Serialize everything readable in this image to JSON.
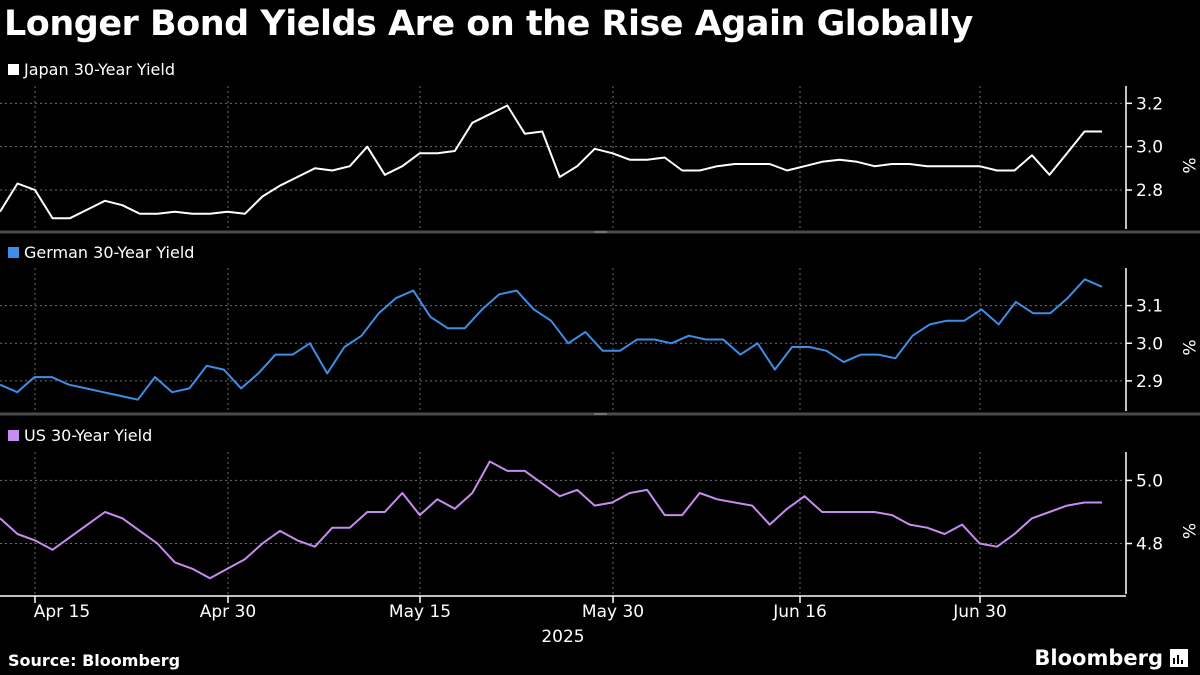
{
  "title": "Longer Bond Yields Are on the Rise Again Globally",
  "source": "Source: Bloomberg",
  "brand": "Bloomberg",
  "brand_icon": "bloomberg-terminal-icon",
  "colors": {
    "japan": "#ffffff",
    "germany": "#3d8ee6",
    "us": "#c68cf0",
    "grid": "#6e6e6e",
    "divider": "#4a4a4a"
  },
  "chart_data": [
    {
      "type": "line",
      "legend": "Japan 30-Year Yield",
      "unit": "%",
      "y_ticks": [
        2.8,
        3.0,
        3.2
      ],
      "ylim": [
        2.62,
        3.28
      ],
      "x_ticks": [
        "Apr 15",
        "Apr 30",
        "May 15",
        "May 30",
        "Jun 16",
        "Jun 30"
      ],
      "x_year": "2025",
      "values": [
        2.7,
        2.83,
        2.8,
        2.67,
        2.67,
        2.71,
        2.75,
        2.73,
        2.69,
        2.69,
        2.7,
        2.69,
        2.69,
        2.7,
        2.69,
        2.77,
        2.82,
        2.86,
        2.9,
        2.89,
        2.91,
        3.0,
        2.87,
        2.91,
        2.97,
        2.97,
        2.98,
        3.11,
        3.15,
        3.19,
        3.06,
        3.07,
        2.86,
        2.91,
        2.99,
        2.97,
        2.94,
        2.94,
        2.95,
        2.89,
        2.89,
        2.91,
        2.92,
        2.92,
        2.92,
        2.89,
        2.91,
        2.93,
        2.94,
        2.93,
        2.91,
        2.92,
        2.92,
        2.91,
        2.91,
        2.91,
        2.91,
        2.89,
        2.89,
        2.96,
        2.87,
        2.97,
        3.07,
        3.07
      ]
    },
    {
      "type": "line",
      "legend": "German 30-Year Yield",
      "unit": "%",
      "y_ticks": [
        2.9,
        3.0,
        3.1
      ],
      "ylim": [
        2.82,
        3.2
      ],
      "values": [
        2.89,
        2.87,
        2.91,
        2.91,
        2.89,
        2.88,
        2.87,
        2.86,
        2.85,
        2.91,
        2.87,
        2.88,
        2.94,
        2.93,
        2.88,
        2.92,
        2.97,
        2.97,
        3.0,
        2.92,
        2.99,
        3.02,
        3.08,
        3.12,
        3.14,
        3.07,
        3.04,
        3.04,
        3.09,
        3.13,
        3.14,
        3.09,
        3.06,
        3.0,
        3.03,
        2.98,
        2.98,
        3.01,
        3.01,
        3.0,
        3.02,
        3.01,
        3.01,
        2.97,
        3.0,
        2.93,
        2.99,
        2.99,
        2.98,
        2.95,
        2.97,
        2.97,
        2.96,
        3.02,
        3.05,
        3.06,
        3.06,
        3.09,
        3.05,
        3.11,
        3.08,
        3.08,
        3.12,
        3.17,
        3.15
      ]
    },
    {
      "type": "line",
      "legend": "US 30-Year Yield",
      "unit": "%",
      "y_ticks": [
        4.8,
        5.0
      ],
      "ylim": [
        4.64,
        5.09
      ],
      "values": [
        4.88,
        4.83,
        4.81,
        4.78,
        4.82,
        4.86,
        4.9,
        4.88,
        4.84,
        4.8,
        4.74,
        4.72,
        4.69,
        4.72,
        4.75,
        4.8,
        4.84,
        4.81,
        4.79,
        4.85,
        4.85,
        4.9,
        4.9,
        4.96,
        4.89,
        4.94,
        4.91,
        4.96,
        5.06,
        5.03,
        5.03,
        4.99,
        4.95,
        4.97,
        4.92,
        4.93,
        4.96,
        4.97,
        4.89,
        4.89,
        4.96,
        4.94,
        4.93,
        4.92,
        4.86,
        4.91,
        4.95,
        4.9,
        4.9,
        4.9,
        4.9,
        4.89,
        4.86,
        4.85,
        4.83,
        4.86,
        4.8,
        4.79,
        4.83,
        4.88,
        4.9,
        4.92,
        4.93,
        4.93
      ]
    }
  ]
}
